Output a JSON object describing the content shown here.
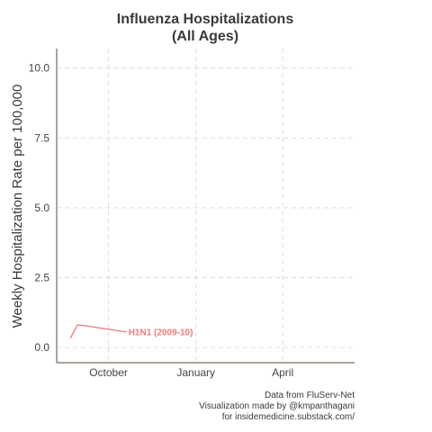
{
  "chart_data": {
    "type": "line",
    "title_lines": [
      "Influenza Hospitalizations",
      "(All Ages)"
    ],
    "xlabel": "",
    "ylabel": "Weekly Hospitalization Rate per 100,000",
    "x_ticks": [
      {
        "label": "October",
        "week": 5.0
      },
      {
        "label": "January",
        "week": 18.5
      },
      {
        "label": "April",
        "week": 31.9
      }
    ],
    "xlim": [
      -3.0,
      43.0
    ],
    "ylim": [
      -0.55,
      10.7
    ],
    "y_ticks": [
      "0.0",
      "2.5",
      "5.0",
      "7.5",
      "10.0"
    ],
    "y_tick_values": [
      0.0,
      2.5,
      5.0,
      7.5,
      10.0
    ],
    "grid": true,
    "series": [
      {
        "name": "H1N1 (2009-10)",
        "color": "#f07a7a",
        "x": [
          -0.9,
          0.2,
          1.1,
          2.4,
          4.0,
          6.0,
          7.8
        ],
        "y": [
          0.32,
          0.8,
          0.78,
          0.74,
          0.68,
          0.61,
          0.55
        ]
      }
    ],
    "caption_lines": [
      "Data from FluServ-Net",
      "Visualization made by @kmpanthagani",
      "for insidemedicine.substack.com/"
    ]
  }
}
